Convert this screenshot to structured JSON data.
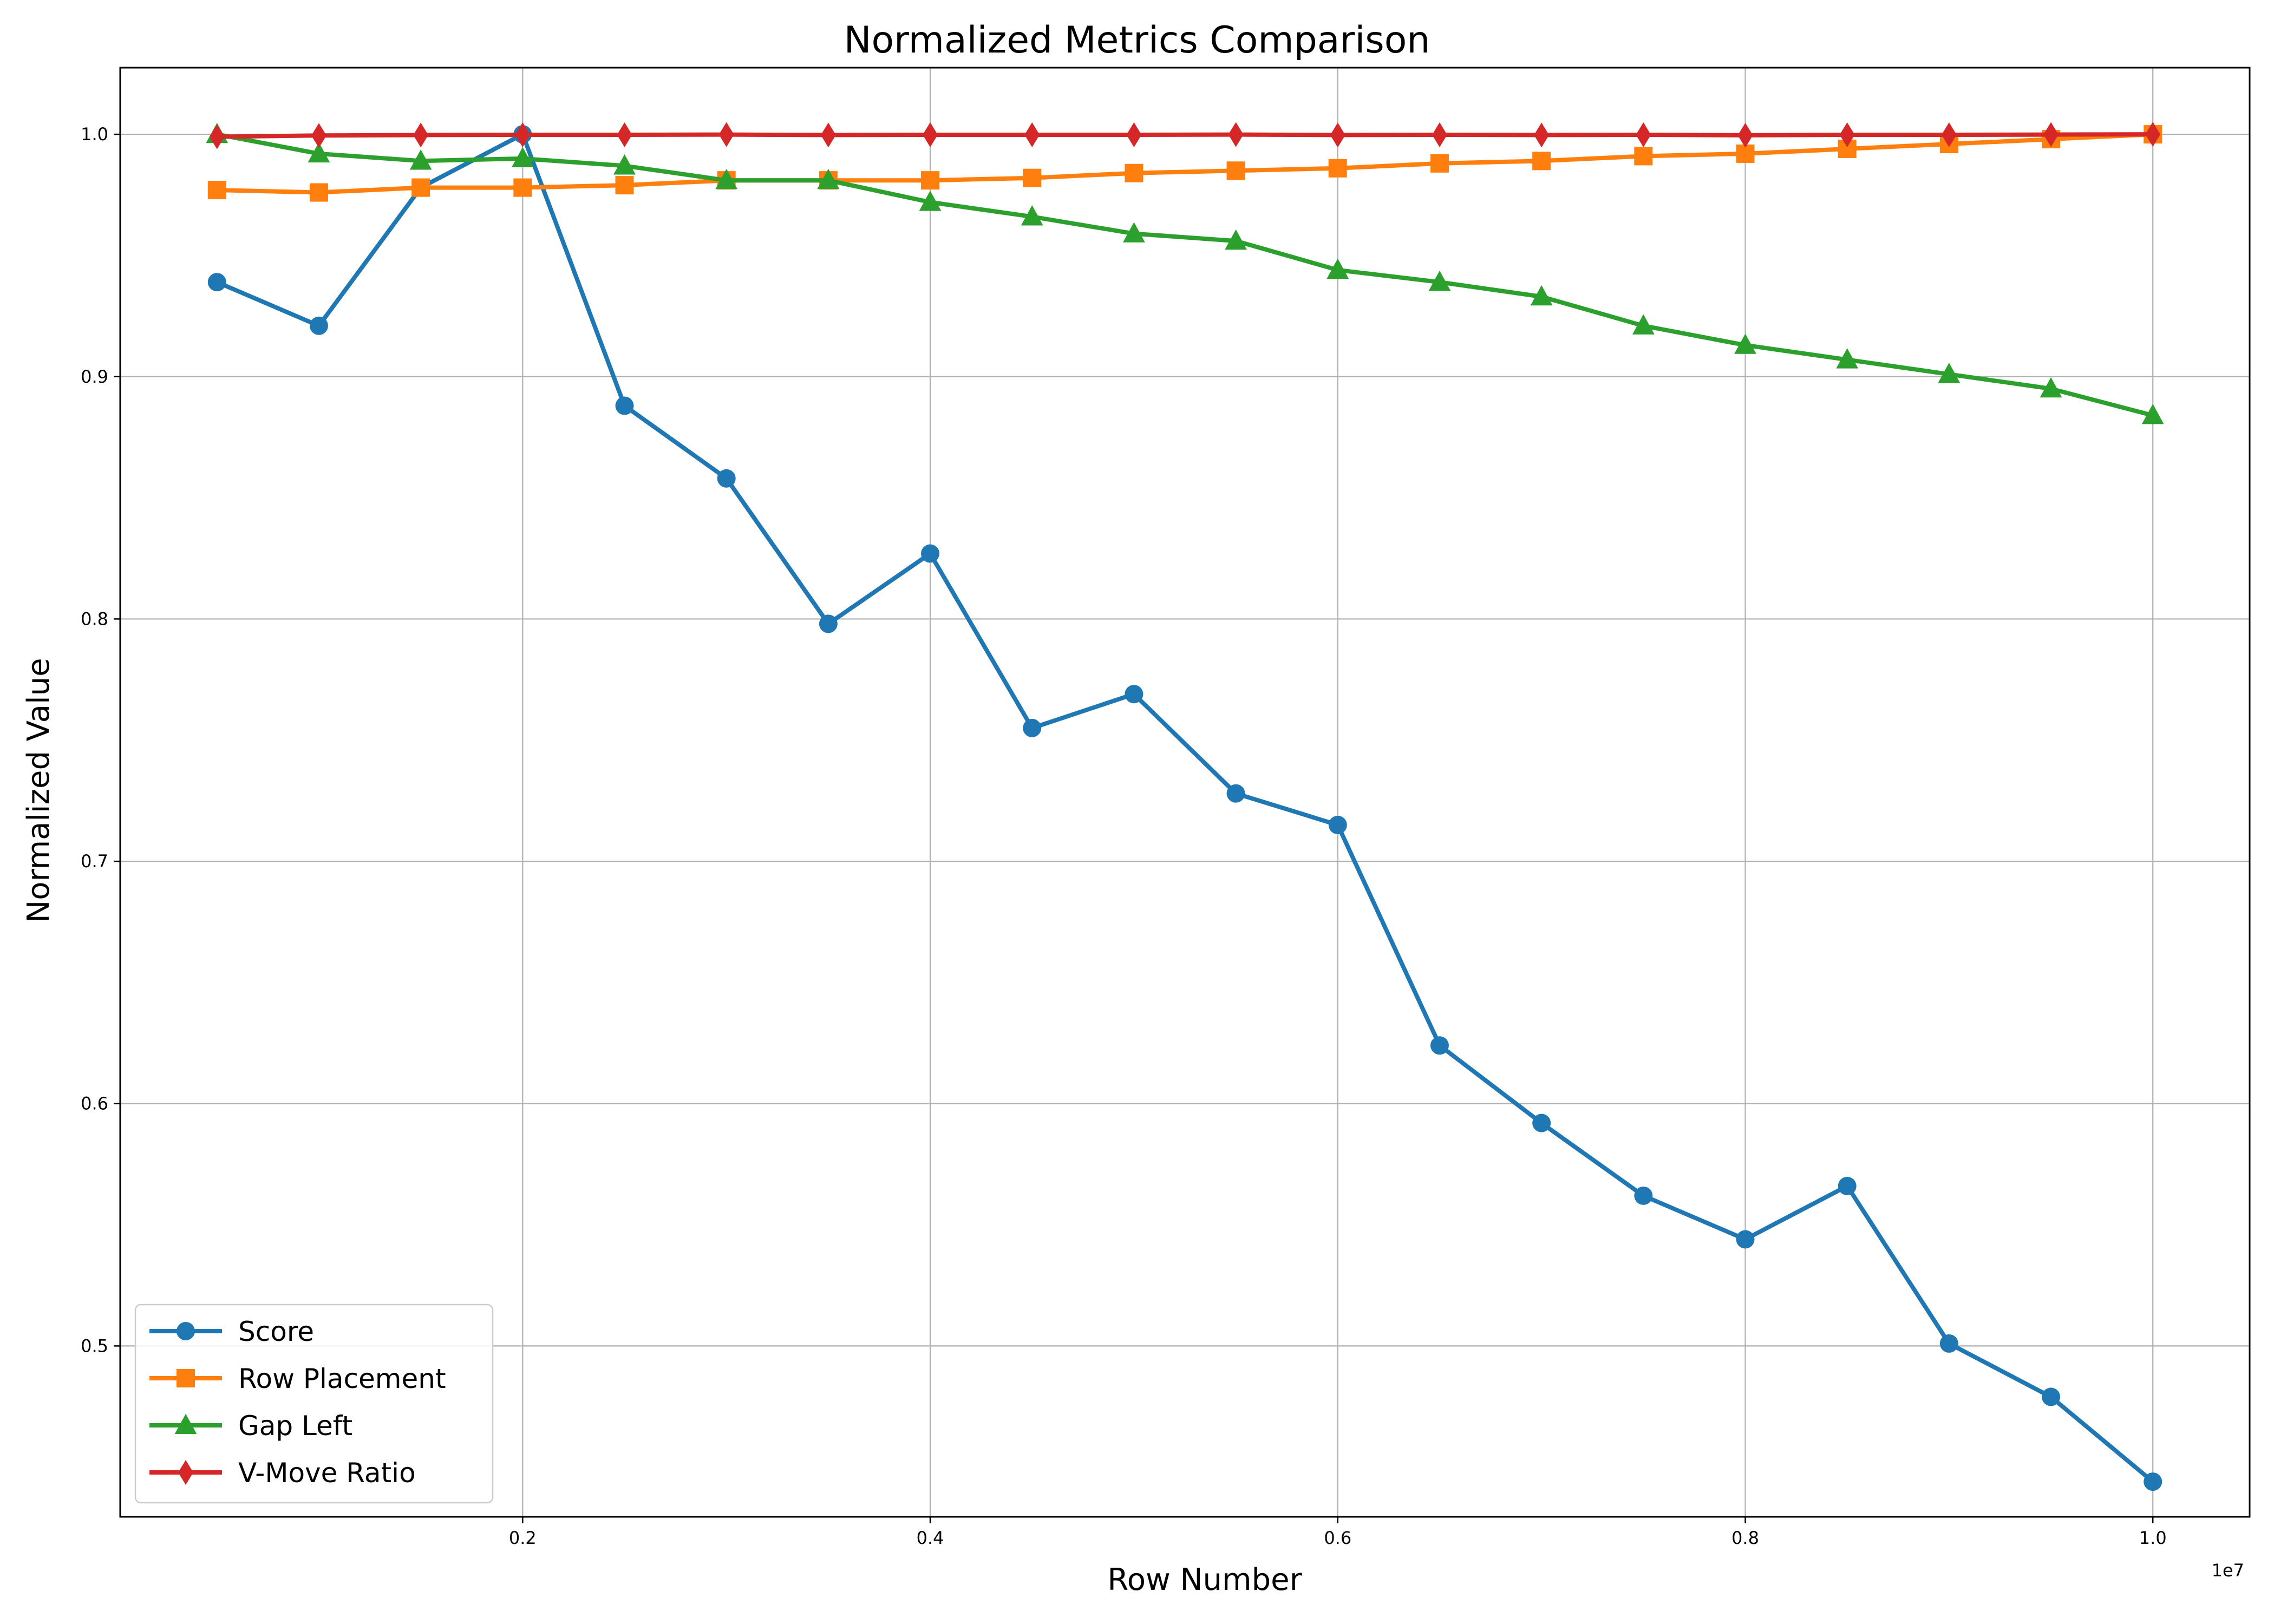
{
  "chart_data": {
    "type": "line",
    "title": "Normalized Metrics Comparison",
    "xlabel": "Row Number",
    "ylabel": "Normalized Value",
    "x_offset_label": "1e7",
    "x": [
      500000,
      1000000,
      1500000,
      2000000,
      2500000,
      3000000,
      3500000,
      4000000,
      4500000,
      5000000,
      5500000,
      6000000,
      6500000,
      7000000,
      7500000,
      8000000,
      8500000,
      9000000,
      9500000,
      10000000
    ],
    "xlim": [
      25000,
      10475000
    ],
    "ylim": [
      0.4295,
      1.0275
    ],
    "x_ticks": [
      {
        "value": 2000000,
        "label": "0.2"
      },
      {
        "value": 4000000,
        "label": "0.4"
      },
      {
        "value": 6000000,
        "label": "0.6"
      },
      {
        "value": 8000000,
        "label": "0.8"
      },
      {
        "value": 10000000,
        "label": "1.0"
      }
    ],
    "y_ticks": [
      {
        "value": 0.5,
        "label": "0.5"
      },
      {
        "value": 0.6,
        "label": "0.6"
      },
      {
        "value": 0.7,
        "label": "0.7"
      },
      {
        "value": 0.8,
        "label": "0.8"
      },
      {
        "value": 0.9,
        "label": "0.9"
      },
      {
        "value": 1.0,
        "label": "1.0"
      }
    ],
    "grid": true,
    "legend_position": "lower-left",
    "series": [
      {
        "name": "Score",
        "color": "#1f77b4",
        "marker": "circle",
        "values": [
          0.939,
          0.921,
          0.978,
          1.0,
          0.888,
          0.858,
          0.798,
          0.827,
          0.755,
          0.769,
          0.728,
          0.715,
          0.624,
          0.592,
          0.562,
          0.544,
          0.566,
          0.501,
          0.479,
          0.444
        ]
      },
      {
        "name": "Row Placement",
        "color": "#ff7f0e",
        "marker": "square",
        "values": [
          0.977,
          0.976,
          0.978,
          0.978,
          0.979,
          0.981,
          0.981,
          0.981,
          0.982,
          0.984,
          0.985,
          0.986,
          0.988,
          0.989,
          0.991,
          0.992,
          0.994,
          0.996,
          0.998,
          1.0
        ]
      },
      {
        "name": "Gap Left",
        "color": "#2ca02c",
        "marker": "triangle",
        "values": [
          1.0,
          0.992,
          0.989,
          0.99,
          0.987,
          0.981,
          0.981,
          0.972,
          0.966,
          0.959,
          0.956,
          0.944,
          0.939,
          0.933,
          0.921,
          0.913,
          0.907,
          0.901,
          0.895,
          0.884
        ]
      },
      {
        "name": "V-Move Ratio",
        "color": "#d62728",
        "marker": "diamond",
        "values": [
          0.999,
          0.9995,
          0.9997,
          0.9998,
          0.9998,
          0.9999,
          0.9997,
          0.9998,
          0.9998,
          0.9998,
          0.9999,
          0.9997,
          0.9998,
          0.9997,
          0.9998,
          0.9996,
          0.9998,
          0.9998,
          0.9999,
          1.0
        ]
      }
    ]
  }
}
